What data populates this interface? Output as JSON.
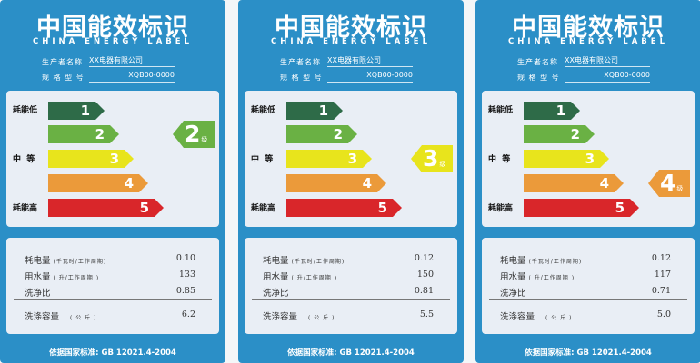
{
  "common": {
    "title": "中国能效标识",
    "subtitle": "CHINA ENERGY LABEL",
    "maker_label": "生产者名称",
    "model_label": "规 格 型 号",
    "level_low": "耗能低",
    "level_mid": "中  等",
    "level_high": "耗能高",
    "grades": [
      "1",
      "2",
      "3",
      "4",
      "5"
    ],
    "grade_colors": [
      "#2e6b48",
      "#6ab144",
      "#e8e41c",
      "#eb9a3a",
      "#d9262a"
    ],
    "grade_suffix": "级",
    "rows": [
      {
        "label": "耗电量",
        "unit": "(千瓦时/工作周期)"
      },
      {
        "label": "用水量",
        "unit": "( 升/工作周期 )"
      },
      {
        "label": "洗净比",
        "unit": ""
      }
    ],
    "capacity_label": "洗涤容量",
    "capacity_unit": "( 公 斤 )",
    "footer": "依据国家标准: GB 12021.4-2004"
  },
  "labels": [
    {
      "maker": "XX电器有限公司",
      "model": "XQB00-0000",
      "grade": 2,
      "values": [
        "0.10",
        "133",
        "0.85"
      ],
      "capacity": "6.2"
    },
    {
      "maker": "XX电器有限公司",
      "model": "XQB00-0000",
      "grade": 3,
      "values": [
        "0.12",
        "150",
        "0.81"
      ],
      "capacity": "5.5"
    },
    {
      "maker": "XX电器有限公司",
      "model": "XQB00-0000",
      "grade": 4,
      "values": [
        "0.12",
        "117",
        "0.71"
      ],
      "capacity": "5.0"
    }
  ]
}
